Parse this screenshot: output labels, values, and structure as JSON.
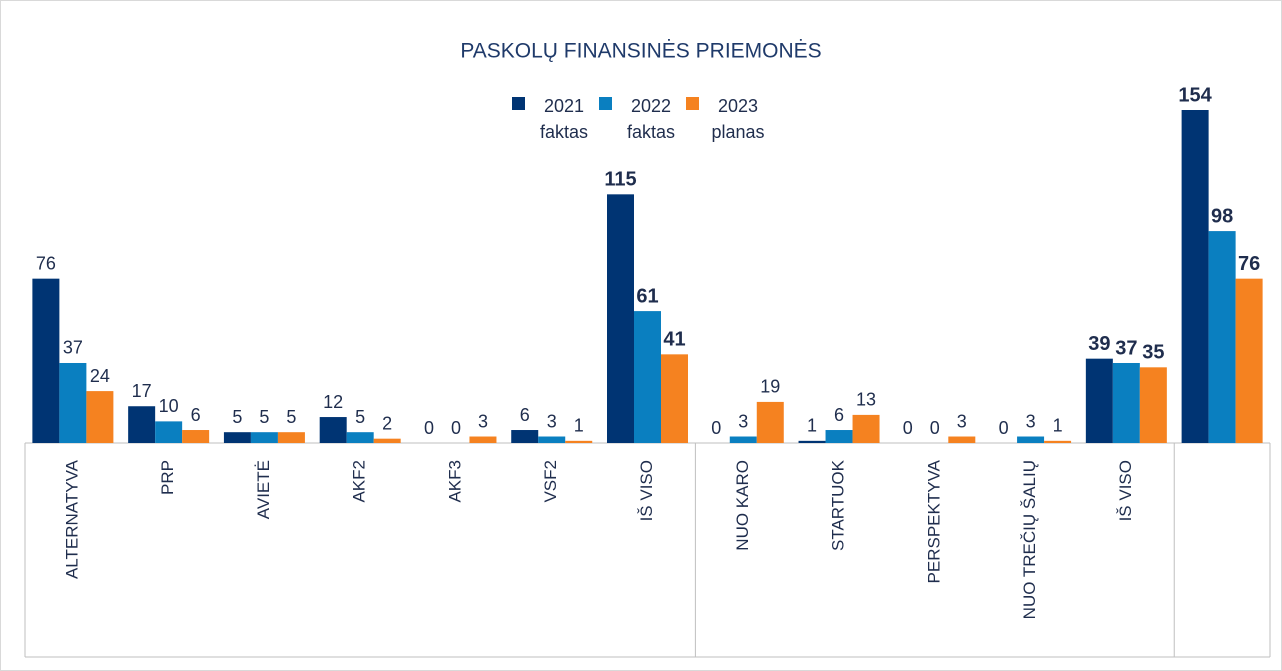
{
  "chart_data": {
    "type": "bar",
    "title": "PASKOLŲ FINANSINĖS PRIEMONĖS",
    "categories": [
      "ALTERNATYVA",
      "PRP",
      "AVIETĖ",
      "AKF2",
      "AKF3",
      "VSF2",
      "IŠ VISO",
      "NUO KARO",
      "STARTUOK",
      "PERSPEKTYVA",
      "NUO TREČIŲ ŠALIŲ",
      "IŠ VISO",
      null
    ],
    "series": [
      {
        "name": "2021 faktas",
        "color": "#003473",
        "values": [
          76,
          17,
          5,
          12,
          0,
          6,
          115,
          0,
          1,
          0,
          0,
          39,
          154
        ]
      },
      {
        "name": "2022 faktas",
        "color": "#0a7fc0",
        "values": [
          37,
          10,
          5,
          5,
          0,
          3,
          61,
          3,
          6,
          0,
          3,
          37,
          98
        ]
      },
      {
        "name": "2023 planas",
        "color": "#f58220",
        "values": [
          24,
          6,
          5,
          2,
          3,
          1,
          41,
          19,
          13,
          3,
          1,
          35,
          76
        ]
      }
    ],
    "legend": "top"
  }
}
